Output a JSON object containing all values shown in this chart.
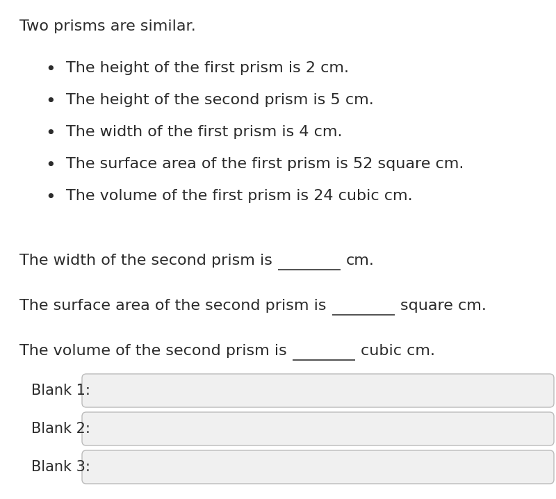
{
  "title": "Two prisms are similar.",
  "bullets": [
    "The height of the first prism is 2 cm.",
    "The height of the second prism is 5 cm.",
    "The width of the first prism is 4 cm.",
    "The surface area of the first prism is 52 square cm.",
    "The volume of the first prism is 24 cubic cm."
  ],
  "q1_prefix": "The width of the second prism is",
  "q1_suffix": "cm.",
  "q2_prefix": "The surface area of the second prism is",
  "q2_suffix": "square cm.",
  "q3_prefix": "The volume of the second prism is",
  "q3_suffix": "cubic cm.",
  "blank_labels": [
    "Blank 1:",
    "Blank 2:",
    "Blank 3:"
  ],
  "background_color": "#ffffff",
  "text_color": "#2b2b2b",
  "font_size_title": 16,
  "font_size_body": 16,
  "font_size_blank_label": 15,
  "input_box_facecolor": "#f0f0f0",
  "input_box_edgecolor": "#bbbbbb",
  "underline_color": "#555555",
  "bullet_color": "#2b2b2b"
}
